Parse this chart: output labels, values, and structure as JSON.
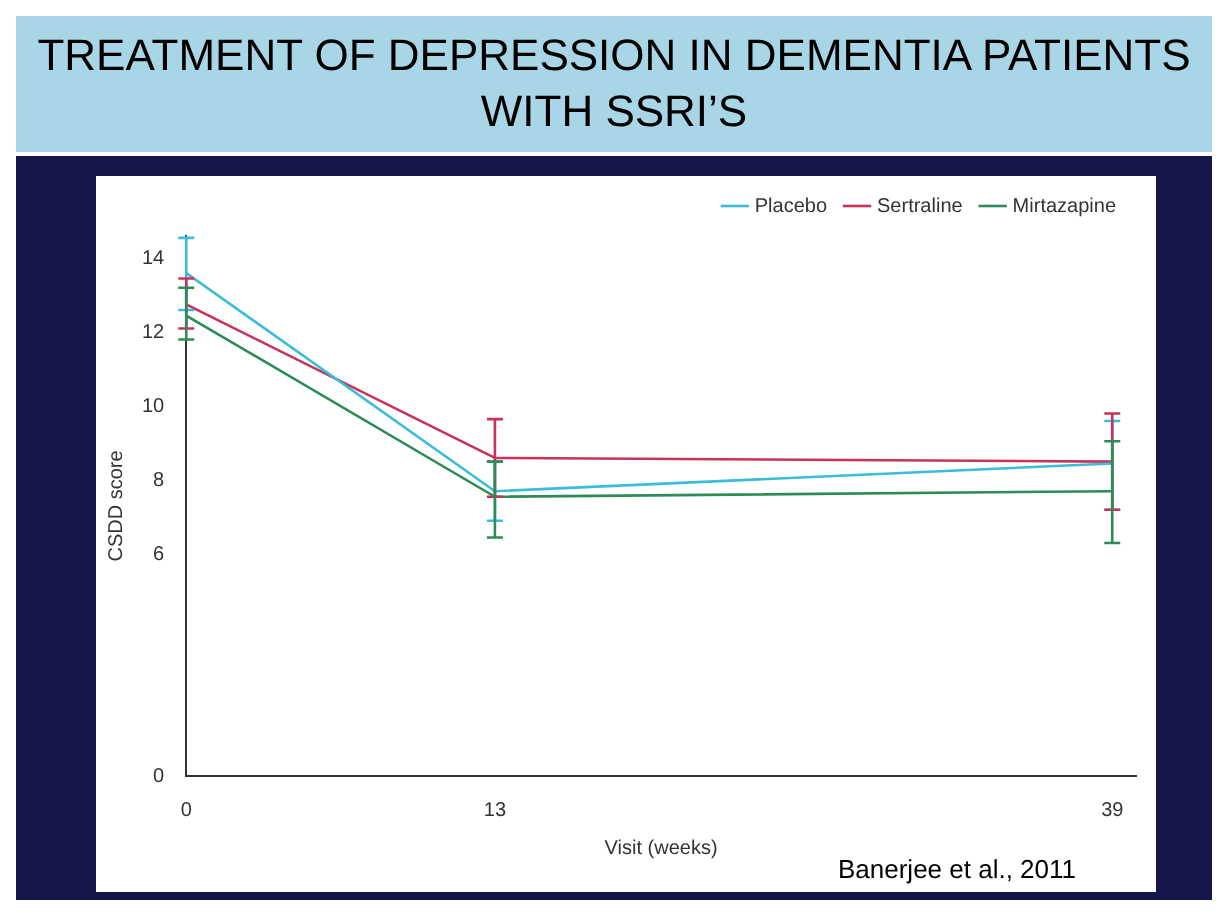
{
  "chart_data": {
    "type": "line",
    "title": "TREATMENT OF DEPRESSION IN DEMENTIA PATIENTS WITH SSRI’S",
    "xlabel": "Visit (weeks)",
    "ylabel": "CSDD score",
    "x": [
      0,
      13,
      39
    ],
    "xlim": [
      0,
      40
    ],
    "xticks": [
      0,
      13,
      39
    ],
    "ylim": [
      0,
      14.6
    ],
    "yticks": [
      0,
      6,
      8,
      10,
      12,
      14
    ],
    "legend": "top right",
    "grid": false,
    "marker": "none",
    "annotations": [
      "Banerjee et al., 2011"
    ],
    "series": [
      {
        "name": "Placebo",
        "color": "#3bbcd8",
        "values": [
          13.6,
          7.7,
          8.45
        ],
        "errors": [
          [
            12.6,
            14.55
          ],
          [
            6.9,
            8.5
          ],
          [
            7.2,
            9.6
          ]
        ]
      },
      {
        "name": "Sertraline",
        "color": "#c8335a",
        "values": [
          12.75,
          8.6,
          8.5
        ],
        "errors": [
          [
            12.1,
            13.45
          ],
          [
            7.55,
            9.65
          ],
          [
            7.2,
            9.8
          ]
        ]
      },
      {
        "name": "Mirtazapine",
        "color": "#2e8b57",
        "values": [
          12.45,
          7.55,
          7.7
        ],
        "errors": [
          [
            11.8,
            13.2
          ],
          [
            6.45,
            8.5
          ],
          [
            6.3,
            9.05
          ]
        ]
      }
    ]
  }
}
